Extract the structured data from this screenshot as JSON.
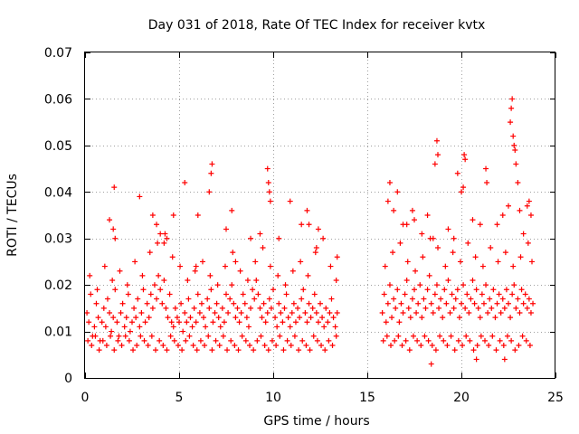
{
  "chart_data": {
    "type": "scatter",
    "title": "Day 031 of 2018, Rate Of TEC Index for receiver kvtx",
    "xlabel": "GPS time / hours",
    "ylabel": "ROTI / TECUs",
    "xlim": [
      0,
      25
    ],
    "ylim": [
      0,
      0.07
    ],
    "xticks": [
      0,
      5,
      10,
      15,
      20,
      25
    ],
    "xtick_labels": [
      "0",
      "5",
      "10",
      "15",
      "20",
      "25"
    ],
    "yticks": [
      0,
      0.01,
      0.02,
      0.03,
      0.04,
      0.05,
      0.06,
      0.07
    ],
    "ytick_labels": [
      "0",
      "0.01",
      "0.02",
      "0.03",
      "0.04",
      "0.05",
      "0.06",
      "0.07"
    ],
    "grid": true,
    "marker": "plus",
    "color": "#ff0000",
    "series": [
      {
        "name": "ROTI",
        "x": [
          0.1,
          0.2,
          0.3,
          0.4,
          0.5,
          0.6,
          0.7,
          0.8,
          0.9,
          1.0,
          1.1,
          1.2,
          1.3,
          1.4,
          1.5,
          1.6,
          1.7,
          1.8,
          1.9,
          2.0,
          2.1,
          2.2,
          2.3,
          2.4,
          2.5,
          2.6,
          2.7,
          2.8,
          2.9,
          3.0,
          3.1,
          3.2,
          3.3,
          3.4,
          3.5,
          3.6,
          3.7,
          3.8,
          3.9,
          4.0,
          4.1,
          4.2,
          4.3,
          4.4,
          4.5,
          4.6,
          4.7,
          4.8,
          4.9,
          5.0,
          5.1,
          5.2,
          5.3,
          5.4,
          5.5,
          5.6,
          5.7,
          5.8,
          5.9,
          6.0,
          6.1,
          6.2,
          6.3,
          6.4,
          6.5,
          6.6,
          6.7,
          6.8,
          6.9,
          7.0,
          7.1,
          7.2,
          7.3,
          7.4,
          7.5,
          7.6,
          7.7,
          7.8,
          7.9,
          8.0,
          8.1,
          8.2,
          8.3,
          8.4,
          8.5,
          8.6,
          8.7,
          8.8,
          8.9,
          9.0,
          9.1,
          9.2,
          9.3,
          9.4,
          9.5,
          9.6,
          9.7,
          9.8,
          9.9,
          10.0,
          10.1,
          10.2,
          10.3,
          10.4,
          10.5,
          10.6,
          10.7,
          10.8,
          10.9,
          11.0,
          11.1,
          11.2,
          11.3,
          11.4,
          11.5,
          11.6,
          11.7,
          11.8,
          11.9,
          12.0,
          12.1,
          12.2,
          12.3,
          12.4,
          12.5,
          12.6,
          12.7,
          12.8,
          12.9,
          13.0,
          13.1,
          13.2,
          13.3,
          13.4,
          0.15,
          0.35,
          0.55,
          0.75,
          0.95,
          1.15,
          1.35,
          1.55,
          1.75,
          1.95,
          2.15,
          2.35,
          2.55,
          2.75,
          2.95,
          3.15,
          3.35,
          3.55,
          3.75,
          3.95,
          4.15,
          4.35,
          4.55,
          4.75,
          4.95,
          5.15,
          5.35,
          5.55,
          5.75,
          5.95,
          6.15,
          6.35,
          6.55,
          6.75,
          6.95,
          7.15,
          7.35,
          7.55,
          7.75,
          7.95,
          8.15,
          8.35,
          8.55,
          8.75,
          8.95,
          9.15,
          9.35,
          9.55,
          9.75,
          9.95,
          10.15,
          10.35,
          10.55,
          10.75,
          10.95,
          11.15,
          11.35,
          11.55,
          11.75,
          11.95,
          12.15,
          12.35,
          12.55,
          12.75,
          12.95,
          13.15,
          13.35,
          0.25,
          0.65,
          1.05,
          1.45,
          1.85,
          2.25,
          2.65,
          3.05,
          3.45,
          3.85,
          4.25,
          4.65,
          5.05,
          5.45,
          5.85,
          6.25,
          6.65,
          7.05,
          7.45,
          7.85,
          8.25,
          8.65,
          9.05,
          9.45,
          9.85,
          10.25,
          10.65,
          11.05,
          11.45,
          11.85,
          12.25,
          12.65,
          13.05,
          13.35,
          1.3,
          1.5,
          1.6,
          1.55,
          2.9,
          3.6,
          3.8,
          4.0,
          4.2,
          4.35,
          4.7,
          5.3,
          5.9,
          6.0,
          6.6,
          6.7,
          6.75,
          7.5,
          7.8,
          8.0,
          8.8,
          9.3,
          9.7,
          9.75,
          9.8,
          9.85,
          10.3,
          10.9,
          11.5,
          11.8,
          11.9,
          12.3,
          12.4,
          13.4,
          15.8,
          15.9,
          16.0,
          16.1,
          16.2,
          16.3,
          16.4,
          16.5,
          16.6,
          16.7,
          16.8,
          16.9,
          17.0,
          17.1,
          17.2,
          17.3,
          17.4,
          17.5,
          17.6,
          17.7,
          17.8,
          17.9,
          18.0,
          18.1,
          18.2,
          18.3,
          18.4,
          18.5,
          18.6,
          18.7,
          18.8,
          18.9,
          19.0,
          19.1,
          19.2,
          19.3,
          19.4,
          19.5,
          19.6,
          19.7,
          19.8,
          19.9,
          20.0,
          20.1,
          20.2,
          20.3,
          20.4,
          20.5,
          20.6,
          20.7,
          20.8,
          20.9,
          21.0,
          21.1,
          21.2,
          21.3,
          21.4,
          21.5,
          21.6,
          21.7,
          21.8,
          21.9,
          22.0,
          22.1,
          22.2,
          22.3,
          22.4,
          22.5,
          22.6,
          22.7,
          22.8,
          22.9,
          23.0,
          23.1,
          23.2,
          23.3,
          23.4,
          23.5,
          23.6,
          23.7,
          23.8,
          15.85,
          16.05,
          16.25,
          16.45,
          16.65,
          16.85,
          17.05,
          17.25,
          17.45,
          17.65,
          17.85,
          18.05,
          18.25,
          18.45,
          18.65,
          18.85,
          19.05,
          19.25,
          19.45,
          19.65,
          19.85,
          20.05,
          20.25,
          20.45,
          20.65,
          20.85,
          21.05,
          21.25,
          21.45,
          21.65,
          21.85,
          22.05,
          22.25,
          22.45,
          22.65,
          22.85,
          23.05,
          23.25,
          23.45,
          23.65,
          15.95,
          16.35,
          16.75,
          17.15,
          17.55,
          17.95,
          18.35,
          18.75,
          19.15,
          19.55,
          19.95,
          20.35,
          20.75,
          21.15,
          21.55,
          21.95,
          22.35,
          22.75,
          23.15,
          23.55,
          23.75,
          16.2,
          16.4,
          16.6,
          17.1,
          17.4,
          17.9,
          18.2,
          18.5,
          18.6,
          18.7,
          18.75,
          19.3,
          19.6,
          19.8,
          20.0,
          20.1,
          20.15,
          20.2,
          20.6,
          21.0,
          21.3,
          21.35,
          21.9,
          22.2,
          22.5,
          22.6,
          22.65,
          22.7,
          22.75,
          22.8,
          22.85,
          22.9,
          23.0,
          23.1,
          23.3,
          23.5,
          23.6,
          23.7,
          18.4,
          17.5,
          16.1,
          16.9,
          20.8,
          22.3
        ],
        "y": [
          0.014,
          0.012,
          0.018,
          0.009,
          0.011,
          0.016,
          0.013,
          0.008,
          0.012,
          0.015,
          0.011,
          0.017,
          0.014,
          0.01,
          0.013,
          0.019,
          0.012,
          0.009,
          0.014,
          0.016,
          0.011,
          0.013,
          0.018,
          0.01,
          0.012,
          0.015,
          0.013,
          0.017,
          0.011,
          0.014,
          0.019,
          0.012,
          0.016,
          0.013,
          0.018,
          0.015,
          0.02,
          0.017,
          0.022,
          0.019,
          0.016,
          0.021,
          0.015,
          0.013,
          0.018,
          0.012,
          0.011,
          0.015,
          0.013,
          0.012,
          0.016,
          0.01,
          0.014,
          0.012,
          0.017,
          0.013,
          0.011,
          0.015,
          0.012,
          0.018,
          0.014,
          0.016,
          0.013,
          0.011,
          0.017,
          0.015,
          0.019,
          0.012,
          0.014,
          0.016,
          0.013,
          0.011,
          0.015,
          0.012,
          0.018,
          0.014,
          0.017,
          0.02,
          0.016,
          0.013,
          0.015,
          0.012,
          0.014,
          0.018,
          0.016,
          0.013,
          0.011,
          0.015,
          0.019,
          0.017,
          0.021,
          0.018,
          0.015,
          0.013,
          0.016,
          0.012,
          0.014,
          0.017,
          0.015,
          0.019,
          0.013,
          0.011,
          0.016,
          0.014,
          0.012,
          0.015,
          0.018,
          0.013,
          0.011,
          0.014,
          0.016,
          0.012,
          0.015,
          0.013,
          0.017,
          0.019,
          0.014,
          0.012,
          0.016,
          0.013,
          0.015,
          0.018,
          0.014,
          0.012,
          0.016,
          0.013,
          0.011,
          0.015,
          0.012,
          0.014,
          0.017,
          0.013,
          0.011,
          0.014,
          0.008,
          0.007,
          0.009,
          0.006,
          0.008,
          0.007,
          0.009,
          0.006,
          0.008,
          0.007,
          0.009,
          0.008,
          0.006,
          0.007,
          0.009,
          0.008,
          0.007,
          0.009,
          0.006,
          0.008,
          0.007,
          0.006,
          0.009,
          0.008,
          0.007,
          0.006,
          0.008,
          0.009,
          0.007,
          0.006,
          0.008,
          0.007,
          0.009,
          0.006,
          0.008,
          0.007,
          0.009,
          0.006,
          0.008,
          0.007,
          0.006,
          0.009,
          0.008,
          0.007,
          0.006,
          0.008,
          0.009,
          0.007,
          0.006,
          0.008,
          0.007,
          0.009,
          0.006,
          0.008,
          0.007,
          0.009,
          0.006,
          0.008,
          0.007,
          0.006,
          0.009,
          0.008,
          0.007,
          0.006,
          0.008,
          0.007,
          0.009,
          0.022,
          0.019,
          0.024,
          0.021,
          0.023,
          0.02,
          0.025,
          0.022,
          0.027,
          0.029,
          0.031,
          0.026,
          0.024,
          0.021,
          0.023,
          0.025,
          0.022,
          0.02,
          0.024,
          0.027,
          0.023,
          0.021,
          0.025,
          0.028,
          0.024,
          0.022,
          0.02,
          0.023,
          0.025,
          0.022,
          0.027,
          0.03,
          0.024,
          0.021,
          0.034,
          0.032,
          0.03,
          0.041,
          0.039,
          0.035,
          0.033,
          0.031,
          0.029,
          0.03,
          0.035,
          0.042,
          0.024,
          0.035,
          0.04,
          0.044,
          0.046,
          0.032,
          0.036,
          0.025,
          0.03,
          0.031,
          0.045,
          0.042,
          0.04,
          0.038,
          0.03,
          0.038,
          0.033,
          0.036,
          0.033,
          0.028,
          0.032,
          0.026,
          0.014,
          0.018,
          0.012,
          0.016,
          0.02,
          0.013,
          0.017,
          0.015,
          0.019,
          0.012,
          0.016,
          0.014,
          0.018,
          0.021,
          0.015,
          0.013,
          0.017,
          0.019,
          0.014,
          0.016,
          0.02,
          0.013,
          0.017,
          0.015,
          0.019,
          0.022,
          0.016,
          0.014,
          0.018,
          0.02,
          0.015,
          0.017,
          0.013,
          0.019,
          0.016,
          0.021,
          0.014,
          0.018,
          0.015,
          0.017,
          0.019,
          0.013,
          0.016,
          0.02,
          0.015,
          0.018,
          0.014,
          0.017,
          0.021,
          0.016,
          0.019,
          0.015,
          0.013,
          0.018,
          0.016,
          0.02,
          0.014,
          0.017,
          0.015,
          0.019,
          0.013,
          0.016,
          0.018,
          0.014,
          0.017,
          0.015,
          0.019,
          0.016,
          0.013,
          0.018,
          0.02,
          0.015,
          0.017,
          0.014,
          0.019,
          0.016,
          0.018,
          0.015,
          0.017,
          0.014,
          0.016,
          0.008,
          0.009,
          0.007,
          0.008,
          0.009,
          0.007,
          0.008,
          0.006,
          0.009,
          0.008,
          0.007,
          0.009,
          0.008,
          0.007,
          0.006,
          0.009,
          0.008,
          0.007,
          0.009,
          0.006,
          0.008,
          0.007,
          0.009,
          0.008,
          0.006,
          0.007,
          0.009,
          0.008,
          0.007,
          0.009,
          0.006,
          0.008,
          0.007,
          0.009,
          0.008,
          0.006,
          0.007,
          0.009,
          0.008,
          0.007,
          0.024,
          0.027,
          0.029,
          0.025,
          0.023,
          0.026,
          0.03,
          0.028,
          0.024,
          0.027,
          0.025,
          0.029,
          0.026,
          0.024,
          0.028,
          0.025,
          0.027,
          0.024,
          0.026,
          0.029,
          0.025,
          0.042,
          0.036,
          0.04,
          0.033,
          0.036,
          0.031,
          0.035,
          0.03,
          0.046,
          0.051,
          0.048,
          0.032,
          0.03,
          0.044,
          0.04,
          0.041,
          0.048,
          0.047,
          0.034,
          0.033,
          0.045,
          0.042,
          0.033,
          0.035,
          0.037,
          0.055,
          0.058,
          0.06,
          0.052,
          0.05,
          0.049,
          0.046,
          0.042,
          0.036,
          0.031,
          0.037,
          0.038,
          0.035,
          0.003,
          0.034,
          0.038,
          0.033,
          0.004,
          0.004
        ]
      }
    ]
  }
}
